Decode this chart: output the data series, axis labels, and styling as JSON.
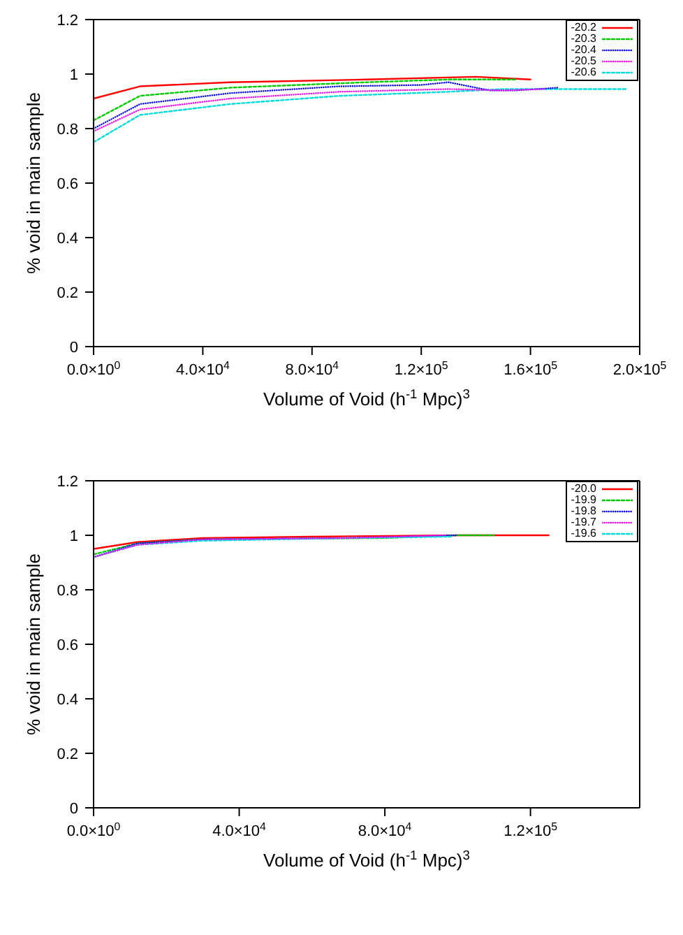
{
  "chart_data": [
    {
      "type": "line",
      "xlabel": "Volume of Void (h$^{-1}$ Mpc)$^{3}$",
      "ylabel": "% void in main sample",
      "xlim": [
        0,
        200000
      ],
      "ylim": [
        0,
        1.2
      ],
      "xticks": [
        {
          "value": 0,
          "label": "0.0×10$^{0}$"
        },
        {
          "value": 40000,
          "label": "4.0×10$^{4}$"
        },
        {
          "value": 80000,
          "label": "8.0×10$^{4}$"
        },
        {
          "value": 120000,
          "label": "1.2×10$^{5}$"
        },
        {
          "value": 160000,
          "label": "1.6×10$^{5}$"
        },
        {
          "value": 200000,
          "label": "2.0×10$^{5}$"
        }
      ],
      "yticks": [
        0,
        0.2,
        0.4,
        0.6,
        0.8,
        1,
        1.2
      ],
      "legend": "top right",
      "grid": false,
      "marker": "none",
      "series": [
        {
          "name": "-20.2",
          "color": "#ff0000",
          "line_style": "solid",
          "x": [
            0,
            17000,
            50000,
            100000,
            140000,
            160000
          ],
          "values": [
            0.91,
            0.955,
            0.97,
            0.98,
            0.99,
            0.98
          ]
        },
        {
          "name": "-20.3",
          "color": "#00cc00",
          "line_style": "dashed",
          "x": [
            0,
            17000,
            50000,
            100000,
            130000,
            155000
          ],
          "values": [
            0.83,
            0.92,
            0.95,
            0.97,
            0.98,
            0.98
          ]
        },
        {
          "name": "-20.4",
          "color": "#0000ff",
          "line_style": "dotted",
          "x": [
            0,
            17000,
            50000,
            90000,
            120000,
            130000,
            145000,
            155000,
            170000
          ],
          "values": [
            0.8,
            0.89,
            0.93,
            0.955,
            0.96,
            0.97,
            0.94,
            0.94,
            0.95
          ]
        },
        {
          "name": "-20.5",
          "color": "#ff00ff",
          "line_style": "dotted",
          "x": [
            0,
            17000,
            50000,
            90000,
            130000,
            150000,
            165000
          ],
          "values": [
            0.79,
            0.87,
            0.91,
            0.935,
            0.945,
            0.94,
            0.945
          ]
        },
        {
          "name": "-20.6",
          "color": "#00dddd",
          "line_style": "dashed",
          "x": [
            0,
            17000,
            50000,
            90000,
            130000,
            150000,
            195000
          ],
          "values": [
            0.75,
            0.85,
            0.89,
            0.92,
            0.935,
            0.945,
            0.945
          ]
        }
      ]
    },
    {
      "type": "line",
      "xlabel": "Volume of Void (h$^{-1}$ Mpc)$^{3}$",
      "ylabel": "% void in main sample",
      "xlim": [
        0,
        150000
      ],
      "ylim": [
        0,
        1.2
      ],
      "xticks": [
        {
          "value": 0,
          "label": "0.0×10$^{0}$"
        },
        {
          "value": 40000,
          "label": "4.0×10$^{4}$"
        },
        {
          "value": 80000,
          "label": "8.0×10$^{4}$"
        },
        {
          "value": 120000,
          "label": "1.2×10$^{5}$"
        }
      ],
      "yticks": [
        0,
        0.2,
        0.4,
        0.6,
        0.8,
        1,
        1.2
      ],
      "legend": "top right",
      "grid": false,
      "marker": "none",
      "series": [
        {
          "name": "-20.0",
          "color": "#ff0000",
          "line_style": "solid",
          "x": [
            0,
            12000,
            30000,
            60000,
            100000,
            125000
          ],
          "values": [
            0.95,
            0.975,
            0.99,
            0.995,
            1,
            1
          ]
        },
        {
          "name": "-19.9",
          "color": "#00cc00",
          "line_style": "dashed",
          "x": [
            0,
            12000,
            30000,
            80000,
            100000,
            110000
          ],
          "values": [
            0.93,
            0.97,
            0.985,
            0.99,
            1,
            1
          ]
        },
        {
          "name": "-19.8",
          "color": "#0000ff",
          "line_style": "dotted",
          "x": [
            0,
            12000,
            30000,
            70000,
            100000
          ],
          "values": [
            0.92,
            0.97,
            0.985,
            0.99,
            1
          ]
        },
        {
          "name": "-19.7",
          "color": "#ff00ff",
          "line_style": "dotted",
          "x": [
            0,
            12000,
            30000,
            70000,
            97000
          ],
          "values": [
            0.92,
            0.965,
            0.985,
            0.99,
            1
          ]
        },
        {
          "name": "-19.6",
          "color": "#00dddd",
          "line_style": "dashed",
          "x": [
            0,
            12000,
            30000,
            70000,
            98000
          ],
          "values": [
            0.92,
            0.965,
            0.98,
            0.99,
            0.995
          ]
        }
      ]
    }
  ]
}
